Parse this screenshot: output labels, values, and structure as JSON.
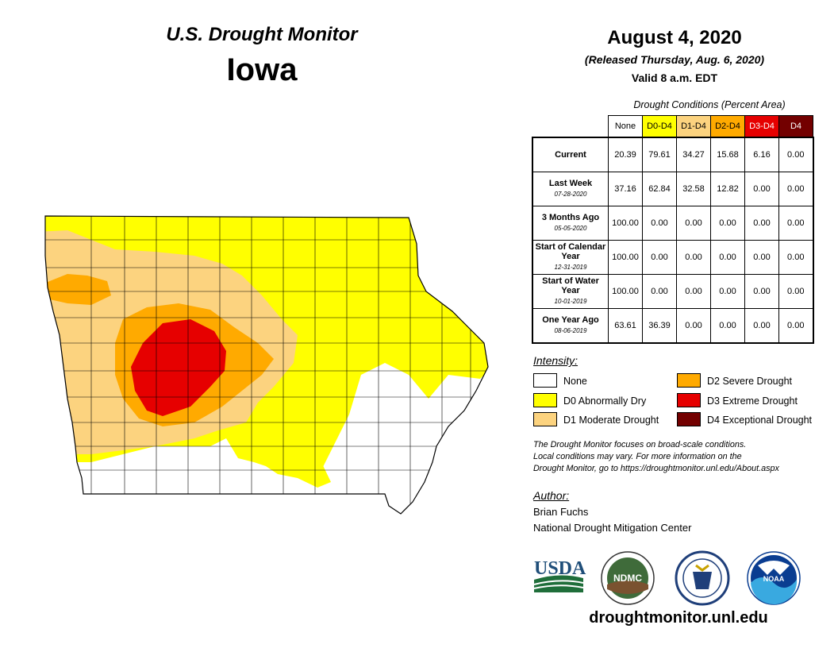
{
  "header": {
    "title": "U.S. Drought Monitor",
    "state": "Iowa",
    "date": "August 4, 2020",
    "released": "(Released Thursday, Aug. 6, 2020)",
    "valid": "Valid 8 a.m. EDT"
  },
  "table": {
    "caption": "Drought Conditions (Percent Area)",
    "columns": [
      {
        "label": "None",
        "color": "#ffffff",
        "text_color": "#000000"
      },
      {
        "label": "D0-D4",
        "color": "#ffff00",
        "text_color": "#000000"
      },
      {
        "label": "D1-D4",
        "color": "#fcd37f",
        "text_color": "#000000"
      },
      {
        "label": "D2-D4",
        "color": "#ffaa00",
        "text_color": "#000000"
      },
      {
        "label": "D3-D4",
        "color": "#e60000",
        "text_color": "#ffffff"
      },
      {
        "label": "D4",
        "color": "#730000",
        "text_color": "#ffffff"
      }
    ],
    "rows": [
      {
        "label": "Current",
        "date": "",
        "values": [
          "20.39",
          "79.61",
          "34.27",
          "15.68",
          "6.16",
          "0.00"
        ]
      },
      {
        "label": "Last Week",
        "date": "07-28-2020",
        "values": [
          "37.16",
          "62.84",
          "32.58",
          "12.82",
          "0.00",
          "0.00"
        ]
      },
      {
        "label": "3 Months Ago",
        "date": "05-05-2020",
        "values": [
          "100.00",
          "0.00",
          "0.00",
          "0.00",
          "0.00",
          "0.00"
        ]
      },
      {
        "label": "Start of Calendar Year",
        "date": "12-31-2019",
        "values": [
          "100.00",
          "0.00",
          "0.00",
          "0.00",
          "0.00",
          "0.00"
        ]
      },
      {
        "label": "Start of Water Year",
        "date": "10-01-2019",
        "values": [
          "100.00",
          "0.00",
          "0.00",
          "0.00",
          "0.00",
          "0.00"
        ]
      },
      {
        "label": "One Year Ago",
        "date": "08-06-2019",
        "values": [
          "63.61",
          "36.39",
          "0.00",
          "0.00",
          "0.00",
          "0.00"
        ]
      }
    ]
  },
  "legend": {
    "title": "Intensity:",
    "items": [
      {
        "label": "None",
        "color": "#ffffff"
      },
      {
        "label": "D0 Abnormally Dry",
        "color": "#ffff00"
      },
      {
        "label": "D1 Moderate Drought",
        "color": "#fcd37f"
      },
      {
        "label": "D2 Severe Drought",
        "color": "#ffaa00"
      },
      {
        "label": "D3 Extreme Drought",
        "color": "#e60000"
      },
      {
        "label": "D4 Exceptional Drought",
        "color": "#730000"
      }
    ]
  },
  "note": {
    "line1": "The Drought Monitor focuses on broad-scale conditions.",
    "line2": "Local conditions may vary. For more information on the",
    "line3": "Drought Monitor, go to https://droughtmonitor.unl.edu/About.aspx"
  },
  "author": {
    "title": "Author:",
    "name": "Brian Fuchs",
    "org": "National Drought Mitigation Center"
  },
  "logos": {
    "usda": "USDA",
    "ndmc": "NDMC",
    "noaa": "NOAA",
    "doc_icon": "department-of-commerce-seal-icon"
  },
  "website": "droughtmonitor.unl.edu"
}
